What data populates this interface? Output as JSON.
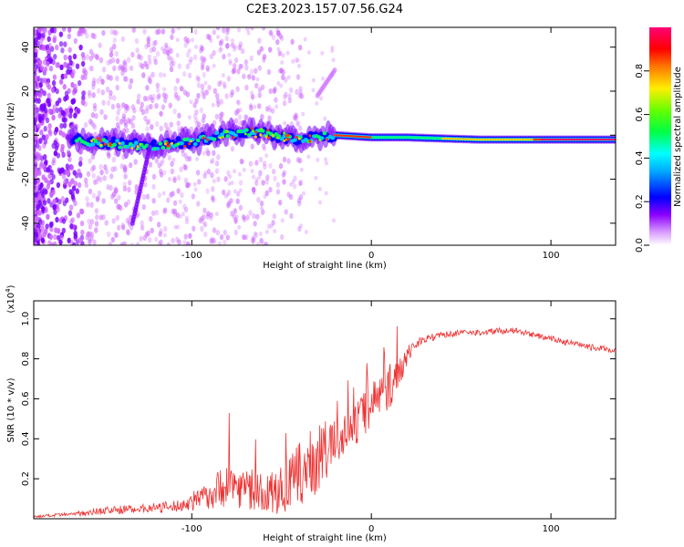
{
  "figure_title": "C2E3.2023.157.07.56.G24",
  "chart_data": [
    {
      "type": "heatmap",
      "xlabel": "Height of straight line (km)",
      "ylabel": "Frequency (Hz)",
      "xlim": [
        -188,
        136
      ],
      "ylim": [
        -50,
        49
      ],
      "x_ticks": [
        -100,
        0,
        100
      ],
      "x_tick_labels": [
        "-100",
        "0",
        "100"
      ],
      "y_ticks": [
        -40,
        -20,
        0,
        20,
        40
      ],
      "y_tick_labels": [
        "-40",
        "-20",
        "0",
        "20",
        "40"
      ],
      "colorbar": {
        "label": "Normalized spectral amplitude",
        "range": [
          0,
          1
        ],
        "ticks": [
          0.0,
          0.2,
          0.4,
          0.6,
          0.8
        ],
        "tick_labels": [
          "0.0",
          "0.2",
          "0.4",
          "0.6",
          "0.8"
        ],
        "colors": [
          "#ffffff",
          "#cc66ff",
          "#7a00ff",
          "#0000ff",
          "#00ccff",
          "#00ff66",
          "#66ff00",
          "#ffcc00",
          "#ff3300",
          "#ff0066"
        ]
      },
      "ridge": [
        {
          "x": -160,
          "y": -3
        },
        {
          "x": -140,
          "y": -4
        },
        {
          "x": -120,
          "y": -5
        },
        {
          "x": -100,
          "y": -3
        },
        {
          "x": -80,
          "y": 1
        },
        {
          "x": -60,
          "y": 1
        },
        {
          "x": -40,
          "y": -2
        },
        {
          "x": -20,
          "y": 0
        },
        {
          "x": 0,
          "y": -1
        },
        {
          "x": 20,
          "y": -1
        },
        {
          "x": 60,
          "y": -2
        },
        {
          "x": 100,
          "y": -2
        },
        {
          "x": 136,
          "y": -2
        }
      ],
      "grid": false
    },
    {
      "type": "line",
      "xlabel": "Height of straight line (km)",
      "ylabel": "SNR (10 * v/v)",
      "y_scale_label": "(x10",
      "y_scale_exp": "4",
      "y_scale_close": ")",
      "xlim": [
        -188,
        136
      ],
      "ylim": [
        0,
        1.09
      ],
      "x_ticks": [
        -100,
        0,
        100
      ],
      "x_tick_labels": [
        "-100",
        "0",
        "100"
      ],
      "y_ticks": [
        0.2,
        0.4,
        0.6,
        0.8,
        1.0
      ],
      "y_tick_labels": [
        "0.2",
        "0.4",
        "0.6",
        "0.8",
        "1.0"
      ],
      "color": "#ee3333",
      "series": [
        {
          "x": [
            -188,
            -170,
            -150,
            -130,
            -110,
            -100,
            -90,
            -80,
            -70,
            -60,
            -50,
            -40,
            -30,
            -20,
            -15,
            -10,
            -5,
            0,
            5,
            10,
            15,
            20,
            25,
            30,
            40,
            50,
            60,
            70,
            80,
            90,
            100,
            110,
            120,
            130,
            136
          ],
          "y": [
            0.01,
            0.02,
            0.04,
            0.05,
            0.06,
            0.08,
            0.12,
            0.18,
            0.15,
            0.12,
            0.14,
            0.22,
            0.3,
            0.38,
            0.42,
            0.45,
            0.52,
            0.58,
            0.62,
            0.66,
            0.72,
            0.82,
            0.88,
            0.9,
            0.92,
            0.93,
            0.93,
            0.94,
            0.94,
            0.92,
            0.9,
            0.88,
            0.86,
            0.85,
            0.84
          ],
          "noise": [
            0.005,
            0.01,
            0.02,
            0.02,
            0.03,
            0.04,
            0.07,
            0.12,
            0.1,
            0.1,
            0.12,
            0.16,
            0.18,
            0.12,
            0.1,
            0.1,
            0.12,
            0.12,
            0.1,
            0.12,
            0.08,
            0.05,
            0.03,
            0.02,
            0.015,
            0.015,
            0.015,
            0.015,
            0.015,
            0.015,
            0.015,
            0.015,
            0.015,
            0.015,
            0.015
          ]
        }
      ],
      "grid": false
    }
  ]
}
